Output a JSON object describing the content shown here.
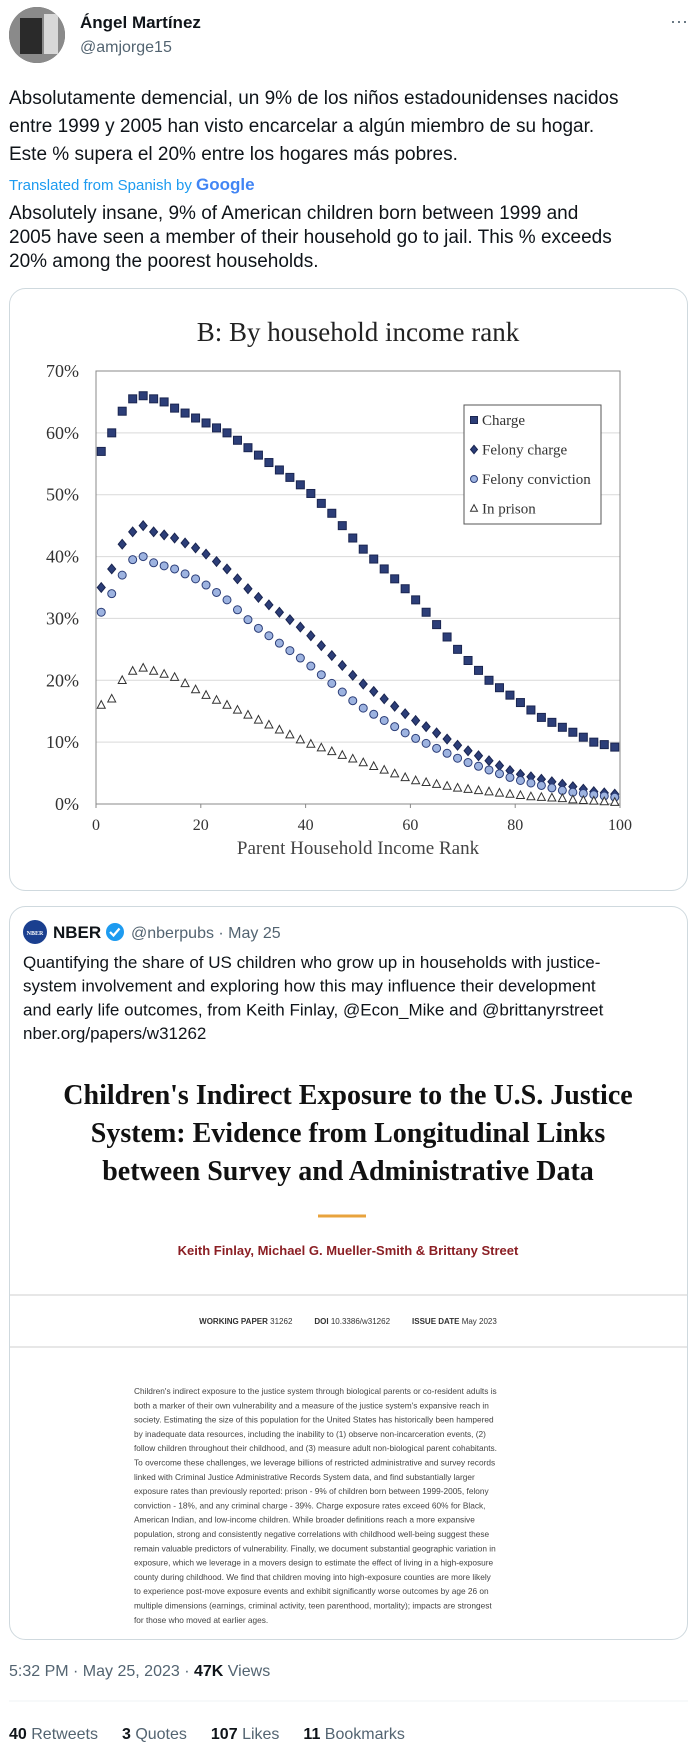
{
  "tweet": {
    "author": {
      "name": "Ángel Martínez",
      "handle": "@amjorge15"
    },
    "more": "···",
    "text_lines": [
      "Absolutamente demencial, un 9% de los niños estadounidenses nacidos",
      "entre 1999 y 2005 han visto encarcelar a algún miembro de su hogar.",
      "Este % supera el 20% entre los hogares más pobres."
    ],
    "translation_label": "Translated from Spanish by",
    "translation_provider": "Google",
    "translated_lines": [
      "Absolutely insane, 9% of American children born between 1999 and",
      "2005 have seen a member of their household go to jail. This % exceeds",
      "20% among the poorest households."
    ],
    "footer": {
      "time": "5:32 PM · May 25, 2023 · ",
      "views": "47K",
      "views_label": "Views"
    },
    "stats": [
      {
        "count": "40",
        "label": "Retweets"
      },
      {
        "count": "3",
        "label": "Quotes"
      },
      {
        "count": "107",
        "label": "Likes"
      },
      {
        "count": "11",
        "label": "Bookmarks"
      }
    ]
  },
  "chart_data": {
    "type": "scatter",
    "title": "B: By household income rank",
    "x_label": "Parent Household Income Rank",
    "x": [
      1,
      3,
      5,
      7,
      9,
      11,
      13,
      15,
      17,
      19,
      21,
      23,
      25,
      27,
      29,
      31,
      33,
      35,
      37,
      39,
      41,
      43,
      45,
      47,
      49,
      51,
      53,
      55,
      57,
      59,
      61,
      63,
      65,
      67,
      69,
      71,
      73,
      75,
      77,
      79,
      81,
      83,
      85,
      87,
      89,
      91,
      93,
      95,
      97,
      99
    ],
    "series": [
      {
        "name": "Charge",
        "marker": "square",
        "color": "#2c3e78",
        "edge": "#1a2550",
        "values": [
          57,
          60,
          63.5,
          65.5,
          66,
          65.5,
          65,
          64,
          63.2,
          62.4,
          61.6,
          60.8,
          60,
          58.8,
          57.6,
          56.4,
          55.2,
          54,
          52.8,
          51.6,
          50.2,
          48.6,
          47,
          45,
          43,
          41.2,
          39.6,
          38,
          36.4,
          34.8,
          33,
          31,
          29,
          27,
          25,
          23.2,
          21.6,
          20,
          18.8,
          17.6,
          16.4,
          15.2,
          14,
          13.2,
          12.4,
          11.6,
          10.8,
          10,
          9.6,
          9.2
        ]
      },
      {
        "name": "Felony charge",
        "marker": "diamond",
        "color": "#2c3e78",
        "edge": "#1a2550",
        "values": [
          35,
          38,
          42,
          44,
          45,
          44,
          43.5,
          43,
          42.2,
          41.4,
          40.4,
          39.2,
          38,
          36.4,
          34.8,
          33.4,
          32.2,
          31,
          29.8,
          28.6,
          27.2,
          25.6,
          24,
          22.4,
          20.8,
          19.4,
          18.2,
          17,
          15.8,
          14.6,
          13.5,
          12.5,
          11.5,
          10.5,
          9.5,
          8.6,
          7.8,
          7,
          6.2,
          5.4,
          4.8,
          4.4,
          4,
          3.6,
          3.2,
          2.8,
          2.4,
          2,
          1.8,
          1.6
        ]
      },
      {
        "name": "Felony conviction",
        "marker": "circle",
        "color": "#9db3e0",
        "edge": "#2c3e78",
        "values": [
          31,
          34,
          37,
          39.5,
          40,
          39,
          38.5,
          38,
          37.2,
          36.4,
          35.4,
          34.2,
          33,
          31.4,
          29.8,
          28.4,
          27.2,
          26,
          24.8,
          23.6,
          22.3,
          20.9,
          19.5,
          18.1,
          16.7,
          15.5,
          14.5,
          13.5,
          12.5,
          11.5,
          10.6,
          9.8,
          9,
          8.2,
          7.4,
          6.7,
          6.1,
          5.5,
          4.9,
          4.3,
          3.8,
          3.4,
          3,
          2.6,
          2.2,
          1.9,
          1.7,
          1.5,
          1.3,
          1.1
        ]
      },
      {
        "name": "In prison",
        "marker": "triangle",
        "color": "#ffffff",
        "edge": "#333333",
        "values": [
          16,
          17,
          20,
          21.5,
          22,
          21.5,
          21,
          20.5,
          19.5,
          18.5,
          17.6,
          16.8,
          16,
          15.2,
          14.4,
          13.6,
          12.8,
          12,
          11.2,
          10.4,
          9.7,
          9.1,
          8.5,
          7.9,
          7.3,
          6.7,
          6.1,
          5.5,
          4.9,
          4.3,
          3.8,
          3.5,
          3.2,
          2.9,
          2.6,
          2.4,
          2.2,
          2,
          1.8,
          1.6,
          1.4,
          1.2,
          1.1,
          1,
          0.9,
          0.7,
          0.6,
          0.5,
          0.4,
          0.3
        ]
      }
    ],
    "xlim": [
      0,
      100
    ],
    "xticks": [
      0,
      20,
      40,
      60,
      80,
      100
    ],
    "ylim": [
      0,
      70
    ],
    "yticks": [
      {
        "value": 0,
        "label": "0%"
      },
      {
        "value": 10,
        "label": "10%"
      },
      {
        "value": 20,
        "label": "20%"
      },
      {
        "value": 30,
        "label": "30%"
      },
      {
        "value": 40,
        "label": "40%"
      },
      {
        "value": 50,
        "label": "50%"
      },
      {
        "value": 60,
        "label": "60%"
      },
      {
        "value": 70,
        "label": "70%"
      }
    ],
    "grid": true,
    "legend": "upper right"
  },
  "quote": {
    "name": "NBER",
    "logo": "NBER",
    "meta": "@nberpubs · May 25",
    "text_lines": [
      "Quantifying the share of US children who grow up in households with justice-",
      "system involvement and exploring how this may influence their development",
      "and early life outcomes, from Keith Finlay, @Econ_Mike and @brittanyrstreet",
      "nber.org/papers/w31262"
    ],
    "paper": {
      "title_lines": [
        "Children's Indirect Exposure to the U.S. Justice",
        "System: Evidence from Longitudinal Links",
        "between Survey and Administrative Data"
      ],
      "authors": "Keith Finlay, Michael G. Mueller-Smith & Brittany Street",
      "working_paper_label": "WORKING PAPER",
      "working_paper": "31262",
      "doi_label": "DOI",
      "doi": "10.3386/w31262",
      "issue_label": "ISSUE DATE",
      "issue": "May 2023",
      "abstract_lines": [
        "Children's indirect exposure to the justice system through biological parents or co-resident adults is",
        "both a marker of their own vulnerability and a measure of the justice system's expansive reach in",
        "society. Estimating the size of this population for the United States has historically been hampered",
        "by inadequate data resources, including the inability to (1) observe non-incarceration events, (2)",
        "follow children throughout their childhood, and (3) measure adult non-biological parent cohabitants.",
        "To overcome these challenges, we leverage billions of restricted administrative and survey records",
        "linked with Criminal Justice Administrative Records System data, and find substantially larger",
        "exposure rates than previously reported: prison - 9% of children born between 1999-2005, felony",
        "conviction - 18%, and any criminal charge - 39%. Charge exposure rates exceed 60% for Black,",
        "American Indian, and low-income children. While broader definitions reach a more expansive",
        "population, strong and consistently negative correlations with childhood well-being suggest these",
        "remain valuable predictors of vulnerability. Finally, we document substantial geographic variation in",
        "exposure, which we leverage in a movers design to estimate the effect of living in a high-exposure",
        "county during childhood. We find that children moving into high-exposure counties are more likely",
        "to experience post-move exposure events and exhibit significantly worse outcomes by age 26 on",
        "multiple dimensions (earnings, criminal activity, teen parenthood, mortality); impacts are strongest",
        "for those who moved at earlier ages."
      ]
    }
  }
}
